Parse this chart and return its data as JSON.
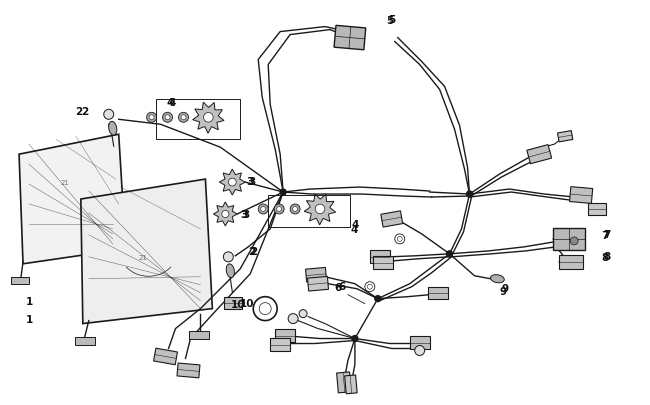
{
  "bg_color": "#ffffff",
  "line_color": "#1a1a1a",
  "label_color": "#111111",
  "fig_width": 6.5,
  "fig_height": 4.06,
  "dpi": 100,
  "label_fontsize": 7.5,
  "lw_wire": 1.0,
  "lw_part": 0.9
}
